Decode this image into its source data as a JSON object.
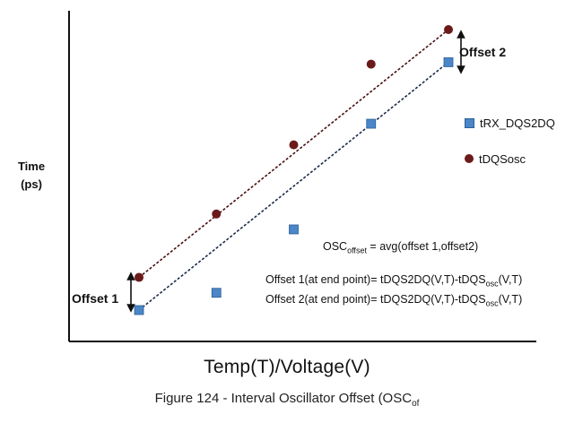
{
  "chart_data": {
    "type": "scatter",
    "xlabel": "Temp(T)/Voltage(V)",
    "ylabel_lines": [
      "Time",
      "(ps)"
    ],
    "grid": false,
    "legend_position": "right",
    "series": [
      {
        "name": "tRX_DQS2DQ",
        "marker": "square",
        "color": "#4a86c8",
        "points": [
          [
            1,
            1.0
          ],
          [
            2,
            1.45
          ],
          [
            3,
            3.1
          ],
          [
            4,
            5.85
          ],
          [
            5,
            7.45
          ]
        ],
        "trendline": [
          [
            1,
            1.0
          ],
          [
            5,
            7.45
          ]
        ]
      },
      {
        "name": "tDQSosc",
        "marker": "circle",
        "color": "#6b1a1a",
        "points": [
          [
            1,
            1.85
          ],
          [
            2,
            3.5
          ],
          [
            3,
            5.3
          ],
          [
            4,
            7.4
          ],
          [
            5,
            8.3
          ]
        ],
        "trendline": [
          [
            1,
            1.85
          ],
          [
            5,
            8.3
          ]
        ]
      }
    ],
    "annotations": {
      "offset1": "Offset 1",
      "offset2": "Offset 2",
      "formula_avg_prefix": "OSC",
      "formula_avg_sub": "offset",
      "formula_avg_rest": " = avg(offset 1,offset2)",
      "formula_offset1_prefix": "Offset 1(at end point)= tDQS2DQ(V,T)-tDQS",
      "formula_offset1_sub": "osc",
      "formula_offset1_rest": "(V,T)",
      "formula_offset2_prefix": "Offset 2(at end point)= tDQS2DQ(V,T)-tDQS",
      "formula_offset2_sub": "osc",
      "formula_offset2_rest": "(V,T)"
    },
    "caption": "Figure 124 - Interval Oscillator Offset (OSC",
    "caption_sub": "of"
  }
}
